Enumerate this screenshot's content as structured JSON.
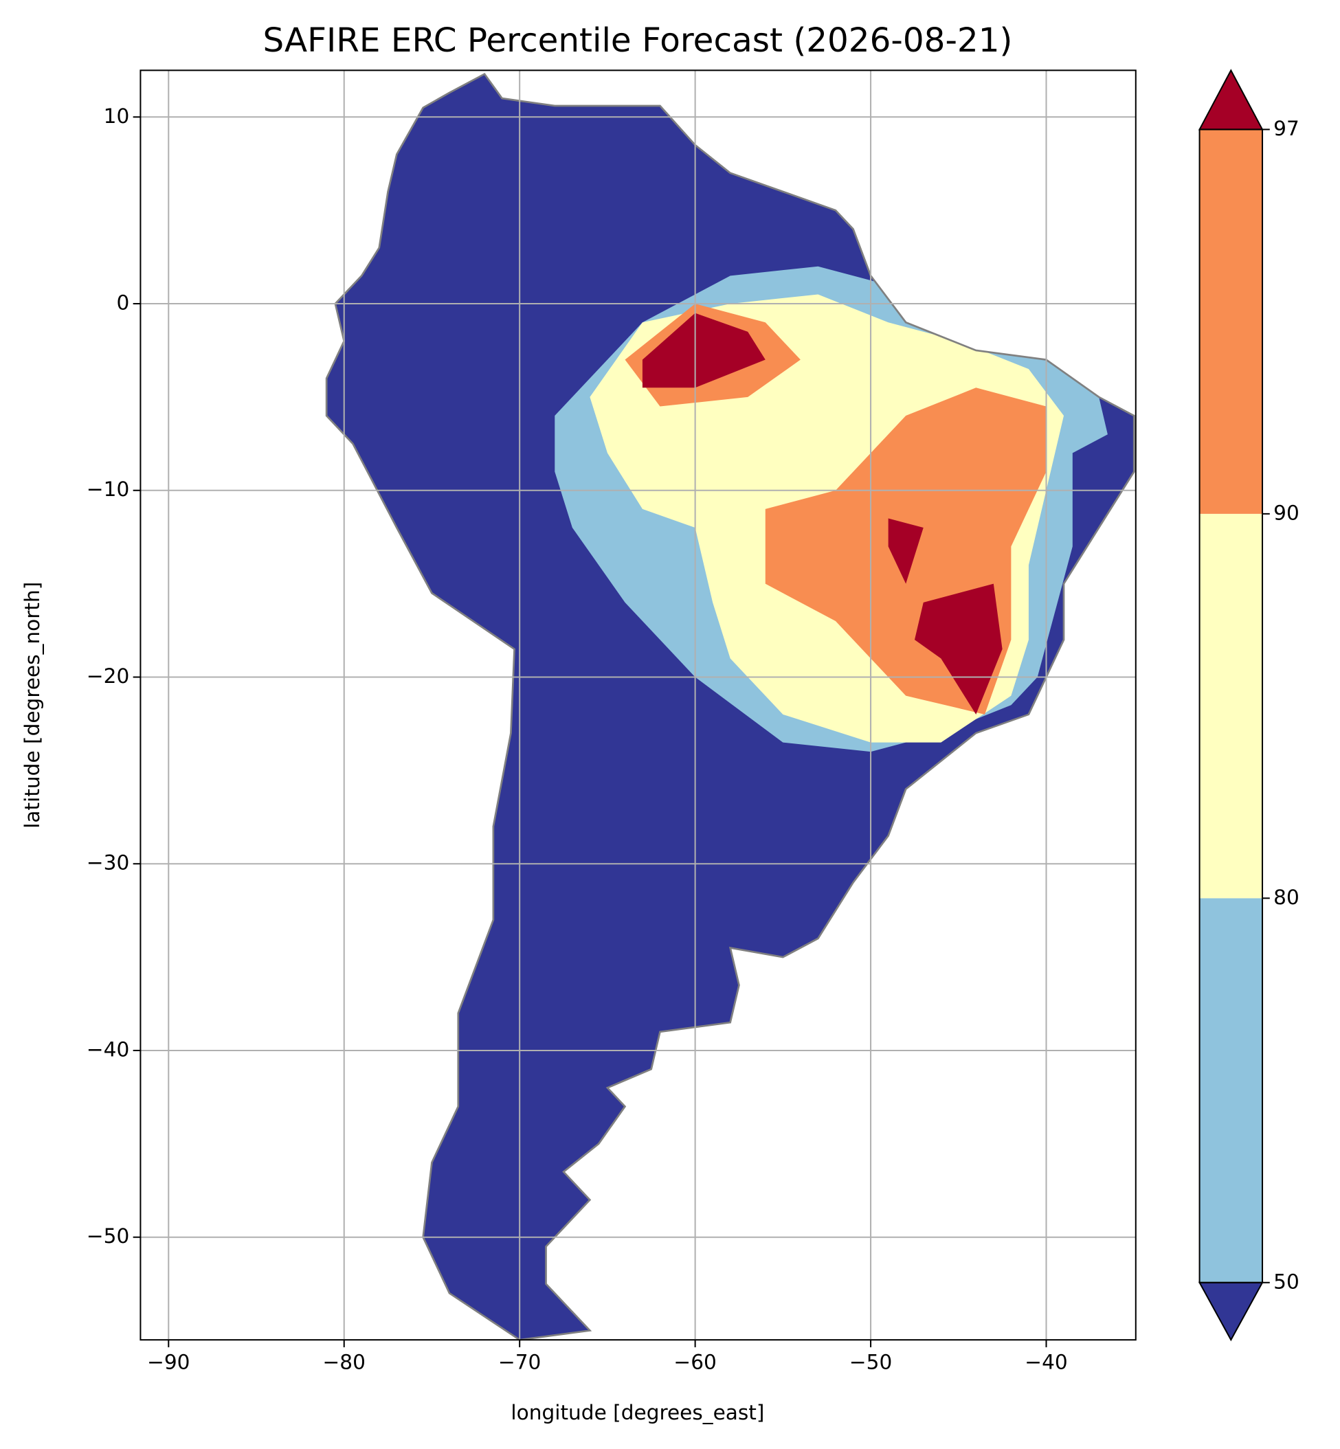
{
  "chart_data": {
    "type": "map",
    "title": "SAFIRE ERC Percentile Forecast (2026-08-21)",
    "xlabel": "longitude [degrees_east]",
    "ylabel": "latitude [degrees_north]",
    "xlim": [
      -91.6,
      -34.9
    ],
    "ylim": [
      -55.5,
      12.5
    ],
    "xticks": [
      {
        "value": -90,
        "label": "−90"
      },
      {
        "value": -80,
        "label": "−80"
      },
      {
        "value": -70,
        "label": "−70"
      },
      {
        "value": -60,
        "label": "−60"
      },
      {
        "value": -50,
        "label": "−50"
      },
      {
        "value": -40,
        "label": "−40"
      }
    ],
    "yticks": [
      {
        "value": -50,
        "label": "−50"
      },
      {
        "value": -40,
        "label": "−40"
      },
      {
        "value": -30,
        "label": "−30"
      },
      {
        "value": -20,
        "label": "−20"
      },
      {
        "value": -10,
        "label": "−10"
      },
      0,
      10
    ],
    "grid": true,
    "colorbar": {
      "levels": [
        50,
        80,
        90,
        97
      ],
      "extend": "both",
      "colors": [
        "#313695",
        "#8fc3dd",
        "#ffffc0",
        "#f88d51",
        "#a50026"
      ]
    }
  }
}
